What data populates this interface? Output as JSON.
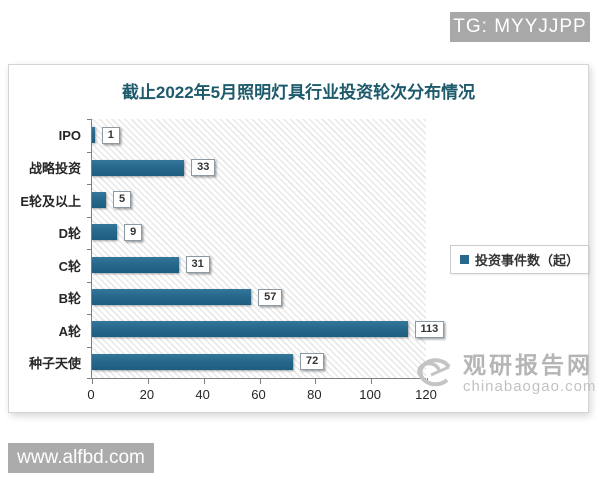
{
  "watermarks": {
    "top_badge": "TG: MYYJJPP",
    "bottom_badge": "www.alfbd.com",
    "brand_name": "观研报告网",
    "brand_domain": "chinabaogao.com"
  },
  "chart_data": {
    "type": "bar",
    "orientation": "horizontal",
    "title": "截止2022年5月照明灯具行业投资轮次分布情况",
    "categories": [
      "IPO",
      "战略投资",
      "E轮及以上",
      "D轮",
      "C轮",
      "B轮",
      "A轮",
      "种子天使"
    ],
    "values": [
      1,
      33,
      5,
      9,
      31,
      57,
      113,
      72
    ],
    "legend": "投资事件数（起）",
    "legend_position": "right",
    "xlim": [
      0,
      120
    ],
    "x_ticks": [
      0,
      20,
      40,
      60,
      80,
      100,
      120
    ],
    "grid": false,
    "plot_background": "diagonal-hatch",
    "bar_color": "#26698c",
    "title_color": "#1d5a6b"
  }
}
